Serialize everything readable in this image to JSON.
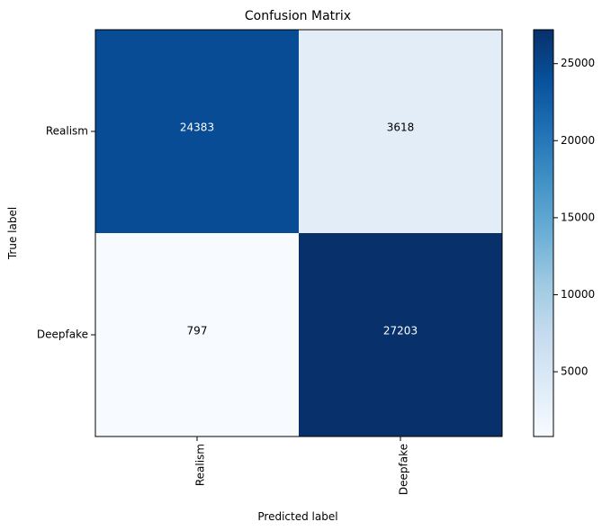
{
  "chart_data": {
    "type": "heatmap",
    "title": "Confusion Matrix",
    "xlabel": "Predicted label",
    "ylabel": "True label",
    "x_categories": [
      "Realism",
      "Deepfake"
    ],
    "y_categories": [
      "Realism",
      "Deepfake"
    ],
    "values": [
      [
        24383,
        3618
      ],
      [
        797,
        27203
      ]
    ],
    "colormap": "Blues",
    "colorbar": {
      "min": 797,
      "max": 27203,
      "ticks": [
        5000,
        10000,
        15000,
        20000,
        25000
      ]
    },
    "grid": false
  }
}
